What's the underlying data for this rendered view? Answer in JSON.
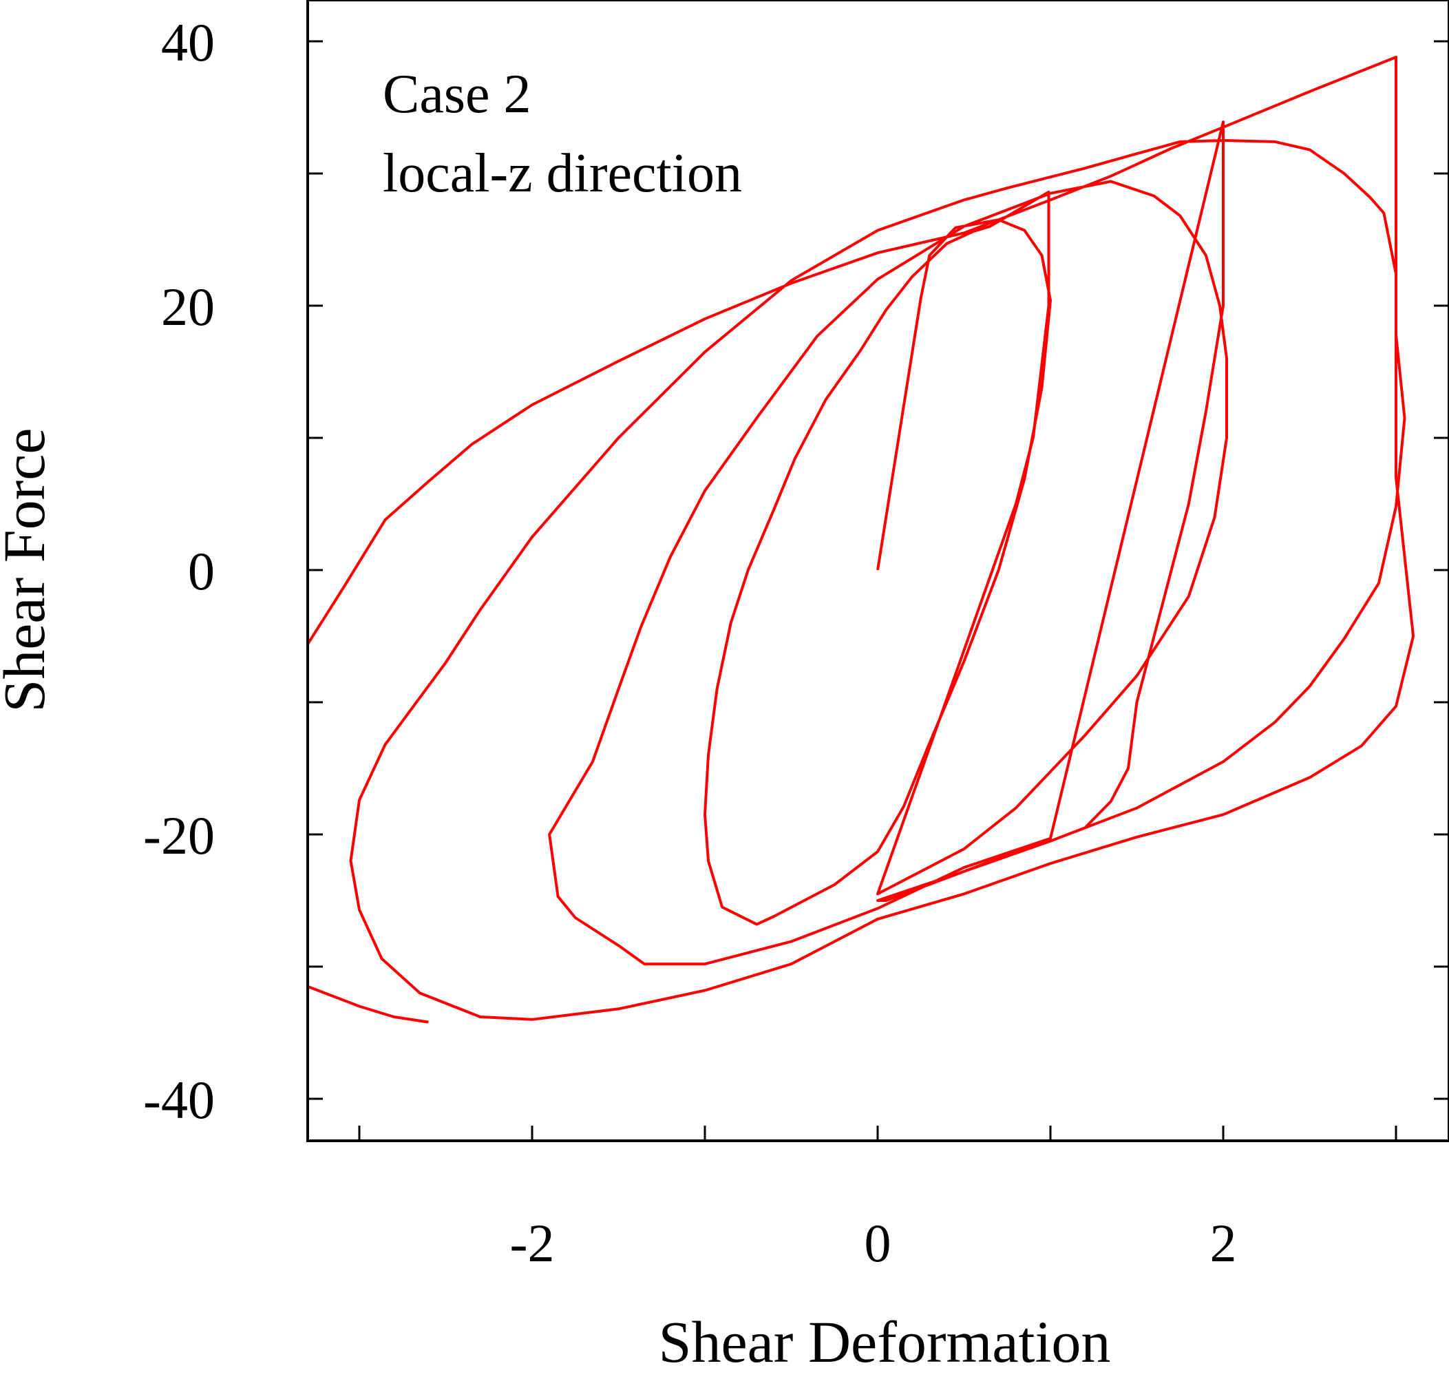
{
  "chart_data": {
    "type": "line",
    "title": "",
    "xlabel": "Shear Deformation",
    "ylabel": "Shear Force",
    "xlim": [
      -3.3,
      3.3
    ],
    "ylim": [
      -43.5,
      43.5
    ],
    "x_ticks": [
      -2,
      0,
      2
    ],
    "x_tick_labels": [
      "-2",
      "0",
      "2"
    ],
    "x_minor_ticks": [
      -3,
      -1,
      1,
      3
    ],
    "y_ticks": [
      -40,
      -20,
      0,
      20,
      40
    ],
    "y_tick_labels": [
      "-40",
      "-20",
      "0",
      "20",
      "40"
    ],
    "y_minor_ticks": [
      -30,
      -10,
      10,
      30
    ],
    "grid": false,
    "legend": "none",
    "annotations": [
      "Case 2",
      "local-z direction"
    ],
    "line_color": "#ff0000",
    "series": [
      {
        "points": [
          [
            0.0,
            0.0
          ],
          [
            0.25,
            20.6
          ],
          [
            0.3,
            23.8
          ],
          [
            0.45,
            25.9
          ],
          [
            0.7,
            26.5
          ],
          [
            0.85,
            25.7
          ],
          [
            0.95,
            23.8
          ],
          [
            1.0,
            20.4
          ],
          [
            0.95,
            13.8
          ],
          [
            0.85,
            6.9
          ],
          [
            0.7,
            0.0
          ],
          [
            0.5,
            -6.9
          ],
          [
            0.3,
            -13.1
          ],
          [
            0.15,
            -17.9
          ],
          [
            0.0,
            -21.3
          ],
          [
            -0.25,
            -23.8
          ],
          [
            -0.6,
            -26.2
          ],
          [
            -0.7,
            -26.8
          ],
          [
            -0.9,
            -25.5
          ],
          [
            -0.98,
            -22.0
          ],
          [
            -1.0,
            -18.5
          ],
          [
            -0.98,
            -14.0
          ],
          [
            -0.93,
            -9.0
          ],
          [
            -0.85,
            -4.0
          ],
          [
            -0.75,
            0.0
          ],
          [
            -0.6,
            4.6
          ],
          [
            -0.48,
            8.4
          ],
          [
            -0.3,
            12.9
          ],
          [
            -0.1,
            16.6
          ],
          [
            0.05,
            19.7
          ],
          [
            0.2,
            22.2
          ],
          [
            0.4,
            24.7
          ],
          [
            0.55,
            25.6
          ],
          [
            0.65,
            26.0
          ],
          [
            0.99,
            28.6
          ],
          [
            0.99,
            20.0
          ],
          [
            0.9,
            10.0
          ],
          [
            0.8,
            5.0
          ],
          [
            0.0,
            -24.5
          ],
          [
            0.5,
            -21.1
          ],
          [
            0.8,
            -18.0
          ],
          [
            1.2,
            -12.5
          ],
          [
            1.5,
            -8.0
          ],
          [
            1.8,
            -2.0
          ],
          [
            1.95,
            4.0
          ],
          [
            2.02,
            10.0
          ],
          [
            2.02,
            16.0
          ],
          [
            1.98,
            20.0
          ],
          [
            1.9,
            23.8
          ],
          [
            1.75,
            26.8
          ],
          [
            1.6,
            28.3
          ],
          [
            1.35,
            29.4
          ],
          [
            1.0,
            28.5
          ],
          [
            0.5,
            26.0
          ],
          [
            0.0,
            22.0
          ],
          [
            -0.35,
            17.7
          ],
          [
            -0.7,
            11.5
          ],
          [
            -1.0,
            6.0
          ],
          [
            -1.2,
            1.0
          ],
          [
            -1.37,
            -4.3
          ],
          [
            -1.5,
            -9.0
          ],
          [
            -1.65,
            -14.5
          ],
          [
            -1.9,
            -20.0
          ],
          [
            -1.85,
            -24.7
          ],
          [
            -1.75,
            -26.3
          ],
          [
            -1.5,
            -28.4
          ],
          [
            -1.35,
            -29.8
          ],
          [
            -1.0,
            -29.8
          ],
          [
            -0.5,
            -28.1
          ],
          [
            0.0,
            -25.6
          ],
          [
            0.5,
            -22.5
          ],
          [
            1.0,
            -20.3
          ],
          [
            2.0,
            33.9
          ],
          [
            2.0,
            28.0
          ],
          [
            2.0,
            20.0
          ],
          [
            1.9,
            12.0
          ],
          [
            1.8,
            5.0
          ],
          [
            1.6,
            -5.0
          ],
          [
            1.5,
            -10.0
          ],
          [
            1.45,
            -15.0
          ],
          [
            1.35,
            -17.5
          ],
          [
            1.2,
            -19.5
          ],
          [
            1.0,
            -20.5
          ],
          [
            0.8,
            -21.3
          ],
          [
            0.5,
            -22.8
          ],
          [
            0.0,
            -25.0
          ],
          [
            0.05,
            -25.0
          ],
          [
            0.5,
            -22.8
          ],
          [
            1.0,
            -20.5
          ],
          [
            1.5,
            -18.0
          ],
          [
            2.0,
            -14.5
          ],
          [
            2.3,
            -11.5
          ],
          [
            2.5,
            -8.8
          ],
          [
            2.7,
            -5.2
          ],
          [
            2.9,
            -1.0
          ],
          [
            3.0,
            4.8
          ],
          [
            3.05,
            11.5
          ],
          [
            3.0,
            17.8
          ],
          [
            3.0,
            22.4
          ],
          [
            2.93,
            27.0
          ],
          [
            2.85,
            28.2
          ],
          [
            2.7,
            30.0
          ],
          [
            2.5,
            31.8
          ],
          [
            2.3,
            32.4
          ],
          [
            2.0,
            32.5
          ],
          [
            1.75,
            32.4
          ],
          [
            1.5,
            31.5
          ],
          [
            1.2,
            30.4
          ],
          [
            0.75,
            28.9
          ],
          [
            0.5,
            28.0
          ],
          [
            0.0,
            25.7
          ],
          [
            -0.5,
            21.9
          ],
          [
            -1.0,
            16.5
          ],
          [
            -1.5,
            10.0
          ],
          [
            -2.0,
            2.5
          ],
          [
            -2.3,
            -3.0
          ],
          [
            -2.5,
            -7.0
          ],
          [
            -2.85,
            -13.2
          ],
          [
            -3.0,
            -17.4
          ],
          [
            -3.05,
            -22.0
          ],
          [
            -3.0,
            -25.7
          ],
          [
            -2.87,
            -29.4
          ],
          [
            -2.65,
            -32.0
          ],
          [
            -2.3,
            -33.8
          ],
          [
            -2.0,
            -34.0
          ],
          [
            -1.5,
            -33.2
          ],
          [
            -1.0,
            -31.8
          ],
          [
            -0.5,
            -29.8
          ],
          [
            0.0,
            -26.4
          ],
          [
            0.5,
            -24.5
          ],
          [
            1.0,
            -22.2
          ],
          [
            1.5,
            -20.2
          ],
          [
            2.0,
            -18.5
          ],
          [
            2.5,
            -15.7
          ],
          [
            2.8,
            -13.3
          ],
          [
            3.0,
            -10.3
          ],
          [
            3.1,
            -5.0
          ],
          [
            3.0,
            7.0
          ],
          [
            3.0,
            15.0
          ],
          [
            3.0,
            20.0
          ],
          [
            3.0,
            25.0
          ],
          [
            3.0,
            29.0
          ],
          [
            3.0,
            32.5
          ],
          [
            3.0,
            38.8
          ],
          [
            2.5,
            36.2
          ],
          [
            2.0,
            33.5
          ],
          [
            1.7,
            31.9
          ],
          [
            1.35,
            29.8
          ],
          [
            1.0,
            28.0
          ],
          [
            0.5,
            25.5
          ],
          [
            0.0,
            24.0
          ],
          [
            -0.5,
            21.7
          ],
          [
            -1.0,
            19.0
          ],
          [
            -1.5,
            15.8
          ],
          [
            -2.0,
            12.5
          ],
          [
            -2.35,
            9.5
          ],
          [
            -2.6,
            6.7
          ],
          [
            -2.85,
            3.8
          ],
          [
            -3.1,
            -1.5
          ],
          [
            -3.4,
            -7.7
          ],
          [
            -3.6,
            -12.0
          ],
          [
            -3.65,
            -15.9
          ],
          [
            -3.7,
            -20.8
          ],
          [
            -3.65,
            -25.8
          ],
          [
            -3.5,
            -29.3
          ],
          [
            -3.3,
            -31.5
          ],
          [
            -3.0,
            -33.0
          ],
          [
            -2.8,
            -33.8
          ],
          [
            -2.6,
            -34.2
          ]
        ]
      }
    ]
  }
}
